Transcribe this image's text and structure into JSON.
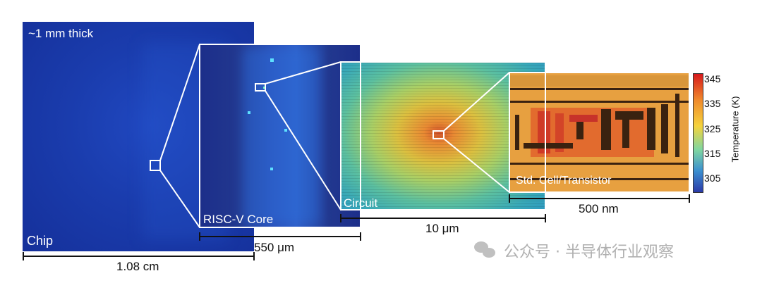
{
  "panels": {
    "chip": {
      "top_label": "~1 mm thick",
      "label": "Chip",
      "scale": "1.08 cm"
    },
    "core": {
      "label": "RISC-V Core",
      "scale": "550 μm"
    },
    "circuit": {
      "label": "Circuit",
      "scale": "10 μm"
    },
    "cell": {
      "label": "Std. Cell/Transistor",
      "scale": "500 nm"
    }
  },
  "colorbar": {
    "title": "Temperature (K)",
    "ticks": [
      "345",
      "335",
      "325",
      "315",
      "305"
    ],
    "colors": [
      "#d7191c",
      "#f08a2c",
      "#f5d33c",
      "#7fd6a0",
      "#3b8fd0",
      "#2b3aa8"
    ]
  },
  "watermark": {
    "text": "公众号 · 半导体行业观察"
  }
}
